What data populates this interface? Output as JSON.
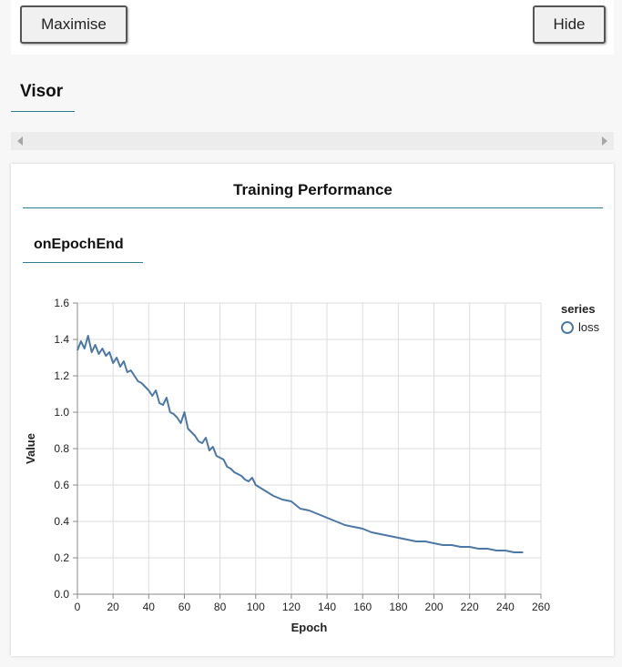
{
  "toolbar": {
    "maximise_label": "Maximise",
    "hide_label": "Hide"
  },
  "visor": {
    "tab_label": "Visor"
  },
  "panel": {
    "title": "Training Performance",
    "sub_tab": "onEpochEnd"
  },
  "colors": {
    "accent": "#2e7d8c",
    "series": "#4c78a8"
  },
  "chart_data": {
    "type": "line",
    "xlabel": "Epoch",
    "ylabel": "Value",
    "xlim": [
      0,
      260
    ],
    "ylim": [
      0,
      1.6
    ],
    "x_ticks": [
      0,
      20,
      40,
      60,
      80,
      100,
      120,
      140,
      160,
      180,
      200,
      220,
      240,
      260
    ],
    "y_ticks": [
      0.0,
      0.2,
      0.4,
      0.6,
      0.8,
      1.0,
      1.2,
      1.4,
      1.6
    ],
    "x_tick_labels": [
      "0",
      "20",
      "40",
      "60",
      "80",
      "100",
      "120",
      "140",
      "160",
      "180",
      "200",
      "220",
      "240",
      "260"
    ],
    "y_tick_labels": [
      "0.0",
      "0.2",
      "0.4",
      "0.6",
      "0.8",
      "1.0",
      "1.2",
      "1.4",
      "1.6"
    ],
    "grid": true,
    "legend": {
      "title": "series",
      "position": "right"
    },
    "series": [
      {
        "name": "loss",
        "x": [
          0,
          2,
          4,
          6,
          8,
          10,
          12,
          14,
          16,
          18,
          20,
          22,
          24,
          26,
          28,
          30,
          32,
          34,
          36,
          38,
          40,
          42,
          44,
          46,
          48,
          50,
          52,
          54,
          56,
          58,
          60,
          62,
          64,
          66,
          68,
          70,
          72,
          74,
          76,
          78,
          80,
          82,
          84,
          86,
          88,
          90,
          92,
          94,
          96,
          98,
          100,
          105,
          110,
          115,
          120,
          125,
          130,
          135,
          140,
          145,
          150,
          155,
          160,
          165,
          170,
          175,
          180,
          185,
          190,
          195,
          200,
          205,
          210,
          215,
          220,
          225,
          230,
          235,
          240,
          245,
          250
        ],
        "y": [
          1.34,
          1.39,
          1.35,
          1.42,
          1.33,
          1.37,
          1.32,
          1.35,
          1.31,
          1.33,
          1.27,
          1.3,
          1.25,
          1.28,
          1.22,
          1.23,
          1.2,
          1.17,
          1.16,
          1.14,
          1.12,
          1.09,
          1.12,
          1.05,
          1.04,
          1.08,
          1.0,
          0.99,
          0.97,
          0.94,
          1.0,
          0.91,
          0.89,
          0.87,
          0.84,
          0.83,
          0.86,
          0.79,
          0.81,
          0.76,
          0.75,
          0.74,
          0.7,
          0.69,
          0.67,
          0.66,
          0.65,
          0.63,
          0.62,
          0.64,
          0.6,
          0.57,
          0.54,
          0.52,
          0.51,
          0.47,
          0.46,
          0.44,
          0.42,
          0.4,
          0.38,
          0.37,
          0.36,
          0.34,
          0.33,
          0.32,
          0.31,
          0.3,
          0.29,
          0.29,
          0.28,
          0.27,
          0.27,
          0.26,
          0.26,
          0.25,
          0.25,
          0.24,
          0.24,
          0.23,
          0.23
        ]
      }
    ]
  }
}
